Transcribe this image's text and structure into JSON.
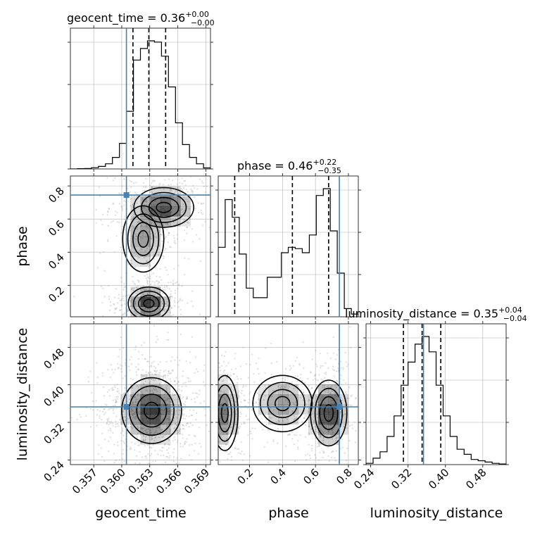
{
  "chart_data": {
    "type": "corner",
    "parameters": [
      "geocent_time",
      "phase",
      "luminosity_distance"
    ],
    "truths": {
      "geocent_time": 0.3605,
      "phase": 0.745,
      "luminosity_distance": 0.353
    },
    "quantiles": {
      "geocent_time": [
        0.3612,
        0.3629,
        0.3647
      ],
      "phase": [
        0.11,
        0.46,
        0.68
      ],
      "luminosity_distance": [
        0.31,
        0.35,
        0.39
      ]
    },
    "titles": {
      "geocent_time": {
        "name": "geocent_time",
        "median": "0.36",
        "plus": "+0.00",
        "minus": "−0.00"
      },
      "phase": {
        "name": "phase",
        "median": "0.46",
        "plus": "+0.22",
        "minus": "−0.35"
      },
      "luminosity_distance": {
        "name": "luminosity_distance",
        "median": "0.35",
        "plus": "+0.04",
        "minus": "−0.04"
      }
    },
    "axis_labels": {
      "geocent_time": "geocent_time",
      "phase": "phase",
      "luminosity_distance": "luminosity_distance"
    },
    "ranges": {
      "geocent_time": [
        0.3545,
        0.3695
      ],
      "phase": [
        0.01,
        0.86
      ],
      "luminosity_distance": [
        0.23,
        0.53
      ]
    },
    "ticks": {
      "geocent_time": [
        "0.357",
        "0.360",
        "0.363",
        "0.366",
        "0.369"
      ],
      "phase": [
        "0.2",
        "0.4",
        "0.6",
        "0.8"
      ],
      "luminosity_distance": [
        "0.24",
        "0.32",
        "0.40",
        "0.48"
      ]
    },
    "histograms": {
      "geocent_time": {
        "edges": [
          0.3545,
          0.35525,
          0.356,
          0.35675,
          0.3575,
          0.35825,
          0.359,
          0.35975,
          0.3605,
          0.36125,
          0.362,
          0.36275,
          0.3635,
          0.36425,
          0.365,
          0.36575,
          0.3665,
          0.36725,
          0.368,
          0.36875,
          0.3695
        ],
        "counts": [
          0,
          2,
          4,
          10,
          20,
          40,
          90,
          200,
          450,
          850,
          940,
          1000,
          990,
          880,
          640,
          360,
          190,
          90,
          40,
          8
        ]
      },
      "phase": {
        "edges": [
          0.01,
          0.0525,
          0.095,
          0.1375,
          0.18,
          0.2225,
          0.265,
          0.3075,
          0.35,
          0.3925,
          0.435,
          0.4775,
          0.52,
          0.5625,
          0.605,
          0.6475,
          0.69,
          0.7325,
          0.775,
          0.8175,
          0.86
        ],
        "counts": [
          0.51,
          0.86,
          0.73,
          0.46,
          0.21,
          0.14,
          0.14,
          0.29,
          0.29,
          0.47,
          0.51,
          0.5,
          0.47,
          0.6,
          0.89,
          0.94,
          0.63,
          0.32,
          0.06,
          0.02
        ]
      },
      "luminosity_distance": {
        "edges": [
          0.23,
          0.245,
          0.26,
          0.275,
          0.29,
          0.305,
          0.32,
          0.335,
          0.35,
          0.365,
          0.38,
          0.395,
          0.41,
          0.425,
          0.44,
          0.455,
          0.47,
          0.485,
          0.5,
          0.515,
          0.53
        ],
        "counts": [
          0.01,
          0.05,
          0.1,
          0.22,
          0.38,
          0.62,
          0.8,
          0.94,
          1.0,
          0.88,
          0.62,
          0.38,
          0.22,
          0.12,
          0.08,
          0.04,
          0.03,
          0.02,
          0.01,
          0.005
        ]
      }
    },
    "density_modes": {
      "phase_vs_geocent_time": [
        {
          "x": 0.3629,
          "y": 0.09,
          "sx": 0.0011,
          "sy": 0.05,
          "weight": 1.0
        },
        {
          "x": 0.3645,
          "y": 0.67,
          "sx": 0.0016,
          "sy": 0.06,
          "weight": 0.9
        },
        {
          "x": 0.3623,
          "y": 0.48,
          "sx": 0.0011,
          "sy": 0.1,
          "weight": 0.5
        }
      ],
      "luminosity_distance_vs_geocent_time": [
        {
          "x": 0.3632,
          "y": 0.345,
          "sx": 0.0016,
          "sy": 0.035,
          "weight": 1.0
        }
      ],
      "luminosity_distance_vs_phase": [
        {
          "x": 0.05,
          "y": 0.34,
          "sx": 0.04,
          "sy": 0.04,
          "weight": 0.7
        },
        {
          "x": 0.4,
          "y": 0.36,
          "sx": 0.09,
          "sy": 0.03,
          "weight": 0.5
        },
        {
          "x": 0.68,
          "y": 0.34,
          "sx": 0.055,
          "sy": 0.035,
          "weight": 1.0
        }
      ]
    },
    "colors": {
      "truth": "#4682b4",
      "contour": "#000000",
      "grid": "#b0b0b0",
      "points": "#9a9a9a"
    },
    "grid": true
  }
}
